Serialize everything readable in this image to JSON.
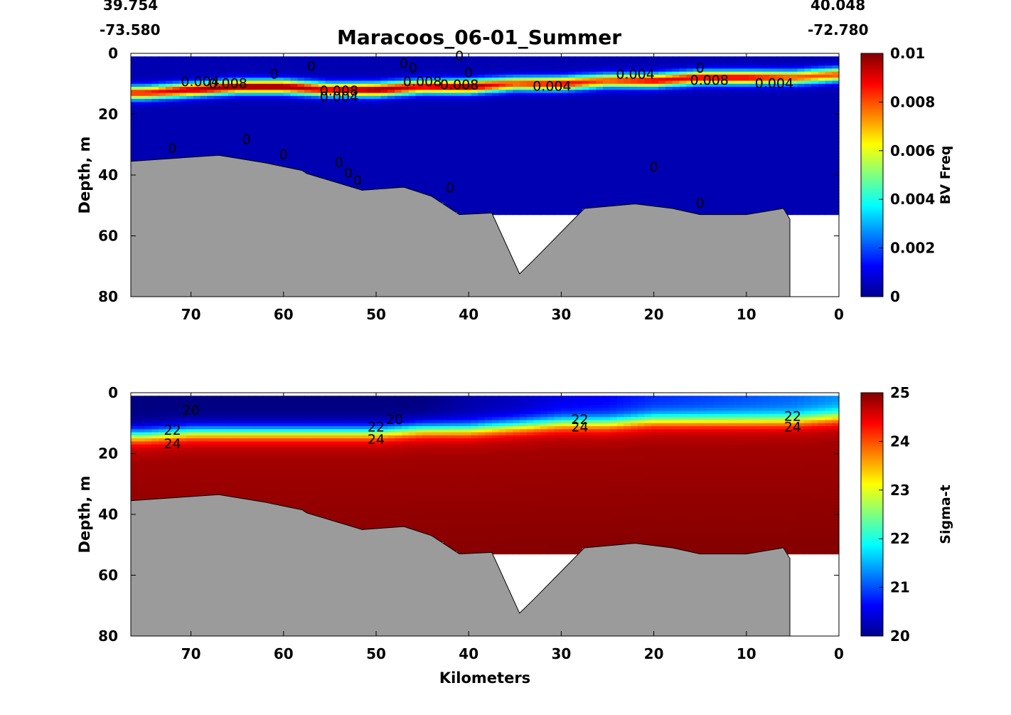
{
  "header": {
    "lat_left": "39.754",
    "lon_left": "-73.580",
    "lat_right": "40.048",
    "lon_right": "-72.780",
    "title": "Maracoos_06-01_Summer"
  },
  "chart_data": [
    {
      "type": "heatmap",
      "title": "Maracoos_06-01_Summer",
      "variable": "BV Freq",
      "xlabel": "",
      "ylabel": "Depth, m",
      "xlim": [
        76.5,
        0
      ],
      "ylim": [
        80,
        0
      ],
      "x_ticks": [
        70,
        60,
        50,
        40,
        30,
        20,
        10,
        0
      ],
      "y_ticks": [
        0,
        20,
        40,
        60,
        80
      ],
      "colorbar": {
        "label": "BV Freq",
        "min": 0,
        "max": 0.01,
        "ticks": [
          "0",
          "0.002",
          "0.004",
          "0.006",
          "0.008",
          "0.01"
        ],
        "colormap": "jet"
      },
      "profile": {
        "description": "stratified layer of max BV frequency near 8-13 m",
        "x_km": [
          75,
          70,
          65,
          60,
          55,
          50,
          45,
          40,
          35,
          30,
          25,
          20,
          15,
          10,
          5,
          0
        ],
        "peak_depth_m": [
          13,
          12,
          11,
          11,
          12,
          12,
          11,
          11,
          10,
          10,
          9,
          9,
          8,
          8,
          8,
          7
        ],
        "peak_value": [
          0.0085,
          0.0095,
          0.01,
          0.01,
          0.009,
          0.01,
          0.009,
          0.01,
          0.008,
          0.009,
          0.008,
          0.009,
          0.009,
          0.009,
          0.008,
          0.008
        ],
        "background_value": 0.0005
      },
      "contour_labels": [
        {
          "text": "0.004",
          "x_km": 69,
          "depth_m": 9.5
        },
        {
          "text": "0.008",
          "x_km": 66,
          "depth_m": 10
        },
        {
          "text": "0",
          "x_km": 61,
          "depth_m": 7
        },
        {
          "text": "0",
          "x_km": 57,
          "depth_m": 4.5
        },
        {
          "text": "0.008",
          "x_km": 54,
          "depth_m": 12.5
        },
        {
          "text": "0.004",
          "x_km": 54,
          "depth_m": 14.5
        },
        {
          "text": "0",
          "x_km": 47,
          "depth_m": 3.5
        },
        {
          "text": "0",
          "x_km": 46,
          "depth_m": 5
        },
        {
          "text": "0",
          "x_km": 40,
          "depth_m": 6.5
        },
        {
          "text": "0.008",
          "x_km": 45,
          "depth_m": 9.5
        },
        {
          "text": "0.008",
          "x_km": 41,
          "depth_m": 10.5
        },
        {
          "text": "0",
          "x_km": 41,
          "depth_m": 1
        },
        {
          "text": "0.004",
          "x_km": 31,
          "depth_m": 11
        },
        {
          "text": "0.004",
          "x_km": 22,
          "depth_m": 7
        },
        {
          "text": "0",
          "x_km": 15,
          "depth_m": 5
        },
        {
          "text": "0.008",
          "x_km": 14,
          "depth_m": 9
        },
        {
          "text": "0.004",
          "x_km": 7,
          "depth_m": 10
        },
        {
          "text": "0",
          "x_km": 72,
          "depth_m": 31.5
        },
        {
          "text": "0",
          "x_km": 64,
          "depth_m": 28.5
        },
        {
          "text": "0",
          "x_km": 60,
          "depth_m": 33.5
        },
        {
          "text": "0",
          "x_km": 54,
          "depth_m": 36
        },
        {
          "text": "0",
          "x_km": 53,
          "depth_m": 39.5
        },
        {
          "text": "0",
          "x_km": 52,
          "depth_m": 42
        },
        {
          "text": "0",
          "x_km": 42,
          "depth_m": 44.5
        },
        {
          "text": "0",
          "x_km": 20,
          "depth_m": 37.5
        },
        {
          "text": "0",
          "x_km": 15,
          "depth_m": 49.5
        }
      ]
    },
    {
      "type": "heatmap",
      "variable": "Sigma-t",
      "xlabel": "Kilometers",
      "ylabel": "Depth, m",
      "xlim": [
        76.5,
        0
      ],
      "ylim": [
        80,
        0
      ],
      "x_ticks": [
        70,
        60,
        50,
        40,
        30,
        20,
        10,
        0
      ],
      "y_ticks": [
        0,
        20,
        40,
        60,
        80
      ],
      "colorbar": {
        "label": "Sigma-t",
        "min": 20,
        "max": 25,
        "ticks": [
          "20",
          "21",
          "22",
          "23",
          "24",
          "25"
        ],
        "colormap": "jet"
      },
      "profile": {
        "description": "sigma-t increases with depth; sharp pycnocline near 10-15 m",
        "x_km": [
          75,
          70,
          65,
          60,
          55,
          50,
          45,
          40,
          35,
          30,
          25,
          20,
          15,
          10,
          5,
          0
        ],
        "surface_value": [
          20.0,
          20.0,
          20.0,
          20.0,
          20.0,
          20.0,
          20.0,
          20.2,
          20.3,
          20.5,
          20.6,
          20.8,
          20.9,
          21.0,
          21.1,
          21.3
        ],
        "pycnocline_depth_m": [
          14,
          13,
          13,
          13,
          13,
          13,
          12,
          12,
          11,
          10,
          10,
          9,
          9,
          9,
          9,
          8
        ],
        "deep_value": 24.8
      },
      "contour_labels": [
        {
          "text": "20",
          "x_km": 70,
          "depth_m": 6
        },
        {
          "text": "22",
          "x_km": 72,
          "depth_m": 12.5
        },
        {
          "text": "24",
          "x_km": 72,
          "depth_m": 17
        },
        {
          "text": "22",
          "x_km": 50,
          "depth_m": 11.5
        },
        {
          "text": "20",
          "x_km": 48,
          "depth_m": 9
        },
        {
          "text": "24",
          "x_km": 50,
          "depth_m": 15.5
        },
        {
          "text": "22",
          "x_km": 28,
          "depth_m": 9
        },
        {
          "text": "24",
          "x_km": 28,
          "depth_m": 11.5
        },
        {
          "text": "22",
          "x_km": 5,
          "depth_m": 8
        },
        {
          "text": "24",
          "x_km": 5,
          "depth_m": 11.5
        }
      ]
    }
  ],
  "bathymetry": {
    "x_km": [
      76.5,
      67,
      62,
      58,
      57.5,
      51.5,
      47,
      44,
      41,
      37.5,
      34.5,
      33,
      27.5,
      22,
      18,
      15,
      10,
      6,
      5.3
    ],
    "depth_m": [
      35.5,
      33.5,
      36,
      38.5,
      39.5,
      45,
      44,
      47,
      53,
      52.5,
      72.5,
      68,
      51,
      49.5,
      51,
      53,
      53,
      51,
      54.5
    ],
    "color": "#9b9b9b"
  },
  "colors": {
    "land": "#9b9b9b",
    "frame": "#000000",
    "background": "#ffffff"
  }
}
